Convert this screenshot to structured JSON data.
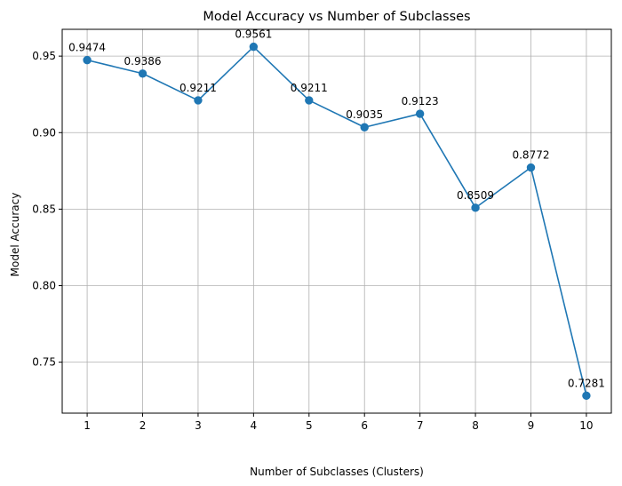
{
  "chart_data": {
    "type": "line",
    "title": "Model Accuracy vs Number of Subclasses",
    "xlabel": "Number of Subclasses (Clusters)",
    "ylabel": "Model Accuracy",
    "x": [
      1,
      2,
      3,
      4,
      5,
      6,
      7,
      8,
      9,
      10
    ],
    "series": [
      {
        "values": [
          0.9474,
          0.9386,
          0.9211,
          0.9561,
          0.9211,
          0.9035,
          0.9123,
          0.8509,
          0.8772,
          0.7281
        ],
        "data_labels": [
          "0.9474",
          "0.9386",
          "0.9211",
          "0.9561",
          "0.9211",
          "0.9035",
          "0.9123",
          "0.8509",
          "0.8772",
          "0.7281"
        ],
        "color": "#1f77b4",
        "marker": "circle"
      }
    ],
    "x_ticks": [
      "1",
      "2",
      "3",
      "4",
      "5",
      "6",
      "7",
      "8",
      "9",
      "10"
    ],
    "y_ticks": [
      0.75,
      0.8,
      0.85,
      0.9,
      0.95
    ],
    "y_tick_labels": [
      "0.75",
      "0.80",
      "0.85",
      "0.90",
      "0.95"
    ],
    "xlim": [
      0.55,
      10.45
    ],
    "ylim": [
      0.7167,
      0.9675
    ],
    "grid": true,
    "grid_color": "#b0b0b0",
    "axis_color": "#000000"
  }
}
